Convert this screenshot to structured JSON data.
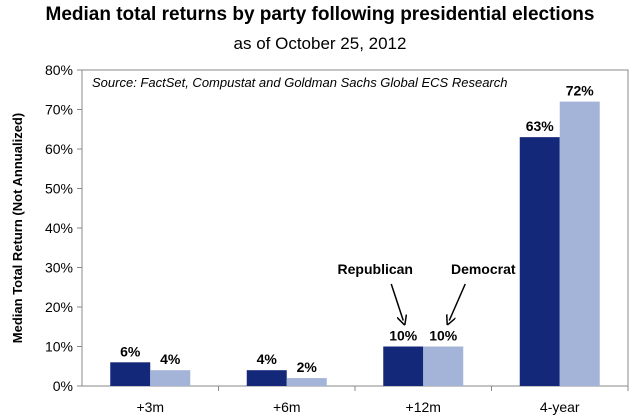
{
  "chart_data": {
    "type": "bar",
    "title": "Median total returns by party following presidential elections",
    "subtitle": "as of October 25, 2012",
    "source": "Source: FactSet, Compustat and Goldman Sachs Global ECS Research",
    "ylabel": "Median Total Return (Not Annualized)",
    "xlabel": "",
    "ylim": [
      0,
      80
    ],
    "yticks": [
      "0%",
      "10%",
      "20%",
      "30%",
      "40%",
      "50%",
      "60%",
      "70%",
      "80%"
    ],
    "categories": [
      "+3m",
      "+6m",
      "+12m",
      "4-year"
    ],
    "series": [
      {
        "name": "Republican",
        "color": "#14287a",
        "values": [
          6,
          4,
          10,
          63
        ],
        "labels": [
          "6%",
          "4%",
          "10%",
          "63%"
        ]
      },
      {
        "name": "Democrat",
        "color": "#a4b4d8",
        "values": [
          4,
          2,
          10,
          72
        ],
        "labels": [
          "4%",
          "2%",
          "10%",
          "72%"
        ]
      }
    ],
    "grid": false,
    "legend": "annotations with arrows above +12m bars"
  }
}
